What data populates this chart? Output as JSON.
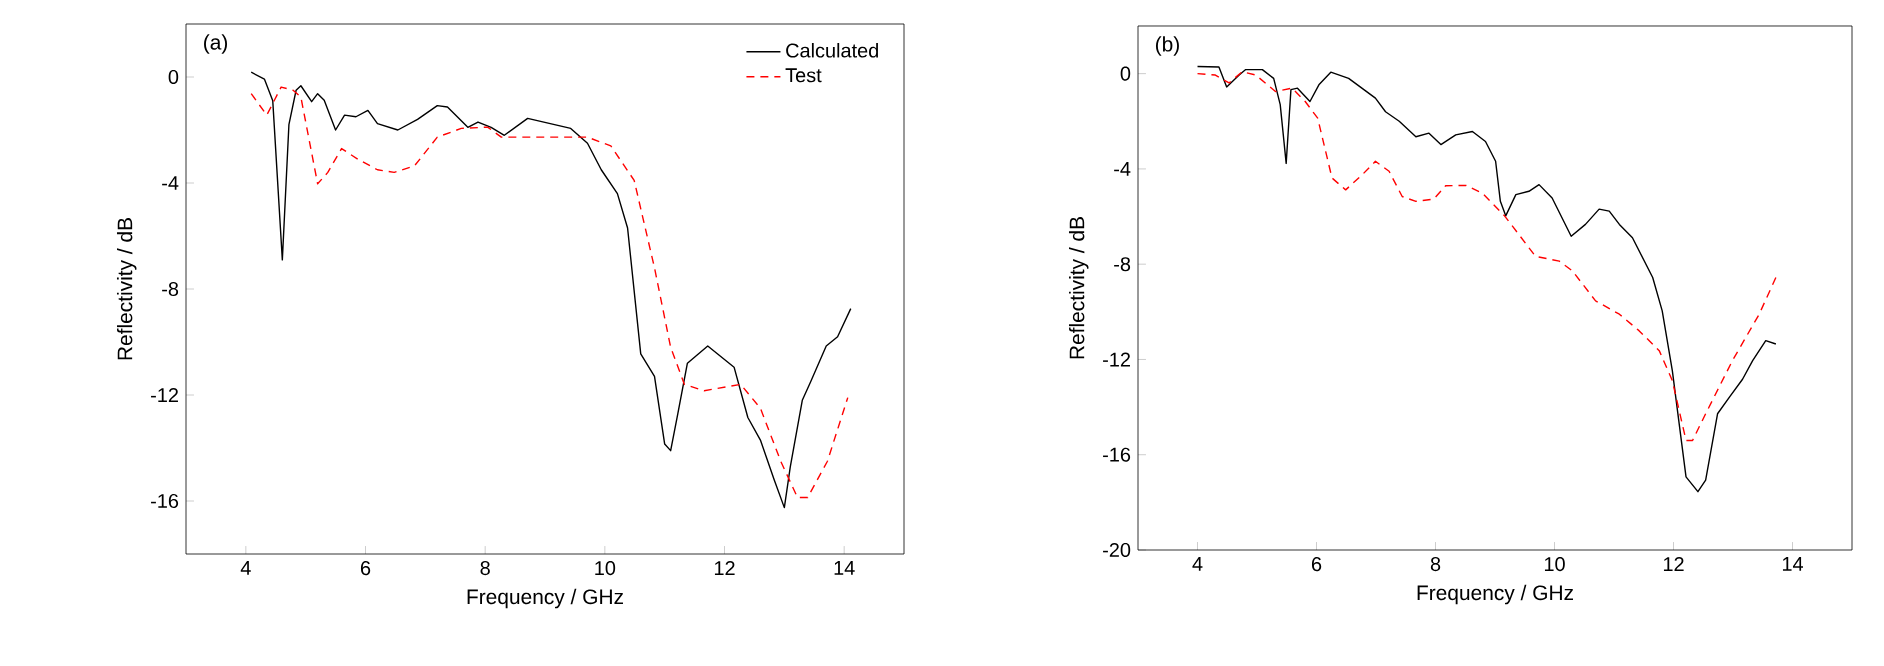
{
  "chart_data": [
    {
      "type": "line",
      "xlabel": "Frequency / GHz",
      "ylabel": "Reflectivity / dB",
      "annotations": [
        "(a)"
      ],
      "xlim": [
        3,
        15
      ],
      "ylim": [
        -18,
        2
      ],
      "xticks": [
        4,
        6,
        8,
        10,
        12,
        14
      ],
      "yticks": [
        0,
        -4,
        -8,
        -12,
        -16
      ],
      "legend": "top right",
      "marker": "none",
      "grid": false,
      "series": [
        {
          "name": "Calculated",
          "color": "#000000",
          "line_style": "solid",
          "x": [
            4.09,
            4.31,
            4.45,
            4.61,
            4.72,
            4.84,
            4.92,
            5.1,
            5.2,
            5.31,
            5.5,
            5.65,
            5.84,
            6.04,
            6.2,
            6.54,
            6.87,
            7.2,
            7.37,
            7.71,
            7.88,
            8.1,
            8.32,
            8.71,
            9.16,
            9.43,
            9.71,
            9.94,
            10.21,
            10.38,
            10.6,
            10.83,
            11.0,
            11.1,
            11.22,
            11.38,
            11.72,
            12.16,
            12.39,
            12.6,
            12.83,
            13.0,
            13.1,
            13.3,
            13.44,
            13.7,
            13.89,
            14.11
          ],
          "values": [
            0.18,
            -0.08,
            -0.9,
            -6.9,
            -1.8,
            -0.5,
            -0.33,
            -0.93,
            -0.63,
            -0.88,
            -2.0,
            -1.44,
            -1.5,
            -1.26,
            -1.76,
            -2.0,
            -1.6,
            -1.08,
            -1.13,
            -1.9,
            -1.7,
            -1.9,
            -2.2,
            -1.56,
            -1.8,
            -1.94,
            -2.5,
            -3.5,
            -4.4,
            -5.7,
            -10.45,
            -11.3,
            -13.85,
            -14.1,
            -12.7,
            -10.8,
            -10.15,
            -10.95,
            -12.85,
            -13.7,
            -15.2,
            -16.25,
            -14.7,
            -12.2,
            -11.5,
            -10.15,
            -9.8,
            -8.74
          ]
        },
        {
          "name": "Test",
          "color": "#ff0000",
          "line_style": "dashed",
          "x": [
            4.09,
            4.35,
            4.59,
            4.79,
            4.92,
            5.2,
            5.37,
            5.6,
            5.87,
            6.2,
            6.48,
            6.82,
            7.2,
            7.6,
            8.04,
            8.27,
            8.93,
            9.71,
            10.1,
            10.49,
            10.83,
            11.1,
            11.33,
            11.66,
            12.27,
            12.6,
            12.94,
            13.22,
            13.39,
            13.72,
            14.06
          ],
          "values": [
            -0.63,
            -1.44,
            -0.38,
            -0.5,
            -0.76,
            -4.03,
            -3.6,
            -2.7,
            -3.1,
            -3.5,
            -3.6,
            -3.35,
            -2.27,
            -1.94,
            -1.89,
            -2.27,
            -2.27,
            -2.27,
            -2.6,
            -3.9,
            -7.2,
            -10.2,
            -11.6,
            -11.84,
            -11.6,
            -12.5,
            -14.5,
            -15.87,
            -15.87,
            -14.5,
            -12.1
          ]
        }
      ]
    },
    {
      "type": "line",
      "xlabel": "Frequency / GHz",
      "ylabel": "Reflectivity / dB",
      "annotations": [
        "(b)"
      ],
      "xlim": [
        3,
        15
      ],
      "ylim": [
        -20,
        2
      ],
      "xticks": [
        4,
        6,
        8,
        10,
        12,
        14
      ],
      "yticks": [
        0,
        -4,
        -8,
        -12,
        -16,
        -20
      ],
      "legend": false,
      "marker": "none",
      "grid": false,
      "series": [
        {
          "color": "#000000",
          "line_style": "solid",
          "x": [
            4.0,
            4.36,
            4.49,
            4.7,
            4.81,
            5.09,
            5.28,
            5.39,
            5.49,
            5.57,
            5.68,
            5.89,
            6.04,
            6.24,
            6.54,
            6.99,
            7.16,
            7.39,
            7.67,
            7.89,
            8.09,
            8.34,
            8.62,
            8.84,
            9.01,
            9.09,
            9.18,
            9.35,
            9.57,
            9.74,
            9.96,
            10.28,
            10.52,
            10.75,
            10.92,
            11.09,
            11.31,
            11.65,
            11.81,
            11.98,
            12.21,
            12.41,
            12.54,
            12.74,
            12.94,
            13.16,
            13.33,
            13.55,
            13.72
          ],
          "values": [
            0.3,
            0.28,
            -0.56,
            -0.06,
            0.17,
            0.17,
            -0.2,
            -1.3,
            -3.77,
            -0.67,
            -0.61,
            -1.17,
            -0.47,
            0.06,
            -0.2,
            -1.03,
            -1.6,
            -2.0,
            -2.65,
            -2.5,
            -2.98,
            -2.57,
            -2.43,
            -2.85,
            -3.68,
            -5.36,
            -5.97,
            -5.08,
            -4.94,
            -4.66,
            -5.22,
            -6.83,
            -6.33,
            -5.69,
            -5.77,
            -6.33,
            -6.89,
            -8.56,
            -9.96,
            -12.47,
            -16.93,
            -17.55,
            -17.07,
            -14.28,
            -13.58,
            -12.83,
            -12.05,
            -11.21,
            -11.35
          ]
        },
        {
          "color": "#ff0000",
          "line_style": "dashed",
          "x": [
            4.0,
            4.3,
            4.53,
            4.75,
            4.98,
            5.31,
            5.59,
            5.81,
            6.02,
            6.26,
            6.49,
            6.77,
            6.99,
            7.22,
            7.44,
            7.67,
            7.97,
            8.17,
            8.51,
            8.79,
            9.16,
            9.4,
            9.68,
            10.08,
            10.3,
            10.69,
            11.09,
            11.42,
            11.76,
            11.98,
            12.21,
            12.32,
            12.54,
            12.99,
            13.44,
            13.72
          ],
          "values": [
            0.0,
            -0.06,
            -0.39,
            0.08,
            -0.06,
            -0.75,
            -0.61,
            -1.17,
            -1.87,
            -4.38,
            -4.88,
            -4.24,
            -3.68,
            -4.1,
            -5.16,
            -5.36,
            -5.27,
            -4.71,
            -4.69,
            -5.02,
            -5.97,
            -6.75,
            -7.67,
            -7.87,
            -8.28,
            -9.54,
            -10.1,
            -10.79,
            -11.63,
            -12.89,
            -15.4,
            -15.4,
            -14.28,
            -12.05,
            -10.1,
            -8.56
          ]
        }
      ]
    }
  ]
}
